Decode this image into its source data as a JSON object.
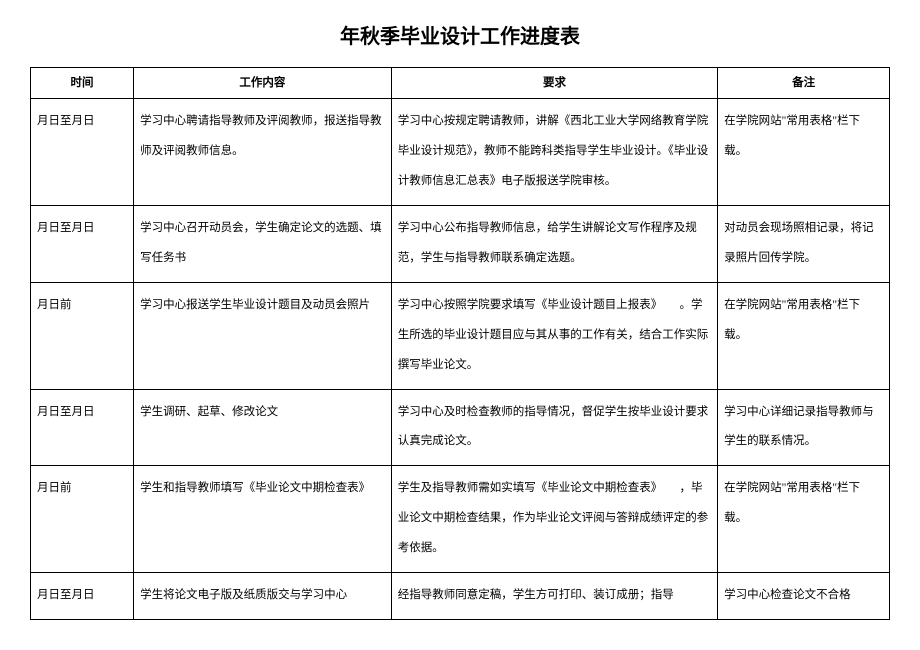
{
  "title": "年秋季毕业设计工作进度表",
  "columns": [
    "时间",
    "工作内容",
    "要求",
    "备注"
  ],
  "rows": [
    {
      "time": "月日至月日",
      "content": "学习中心聘请指导教师及评阅教师，报送指导教师及评阅教师信息。",
      "requirement": "学习中心按规定聘请教师，讲解《西北工业大学网络教育学院毕业设计规范》，教师不能跨科类指导学生毕业设计。《毕业设计教师信息汇总表》电子版报送学院审核。",
      "remark": "在学院网站\"常用表格\"栏下载。"
    },
    {
      "time": "月日至月日",
      "content": "学习中心召开动员会，学生确定论文的选题、填写任务书",
      "requirement": "学习中心公布指导教师信息，给学生讲解论文写作程序及规范，学生与指导教师联系确定选题。",
      "remark": "对动员会现场照相记录，将记录照片回传学院。"
    },
    {
      "time": "月日前",
      "content": "学习中心报送学生毕业设计题目及动员会照片",
      "requirement": "学习中心按照学院要求填写《毕业设计题目上报表》　　。学生所选的毕业设计题目应与其从事的工作有关，结合工作实际撰写毕业论文。",
      "remark": "在学院网站\"常用表格\"栏下载。"
    },
    {
      "time": "月日至月日",
      "content": "学生调研、起草、修改论文",
      "requirement": "学习中心及时检查教师的指导情况，督促学生按毕业设计要求认真完成论文。",
      "remark": "学习中心详细记录指导教师与学生的联系情况。"
    },
    {
      "time": "月日前",
      "content": "学生和指导教师填写《毕业论文中期检查表》",
      "requirement": "学生及指导教师需如实填写《毕业论文中期检查表》　　，毕业论文中期检查结果，作为毕业论文评阅与答辩成绩评定的参考依据。",
      "remark": "在学院网站\"常用表格\"栏下载。"
    },
    {
      "time": "月日至月日",
      "content": "学生将论文电子版及纸质版交与学习中心",
      "requirement": "经指导教师同意定稿，学生方可打印、装订成册；指导",
      "remark": "学习中心检查论文不合格"
    }
  ]
}
